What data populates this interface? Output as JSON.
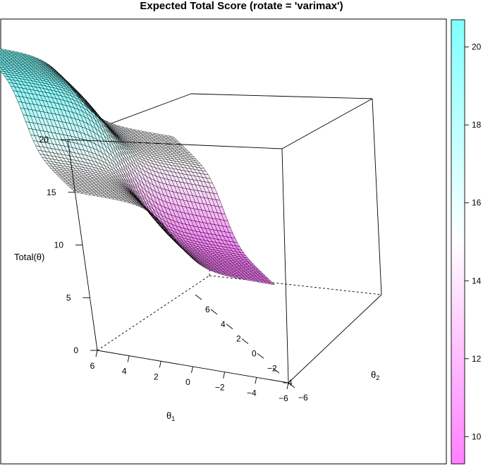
{
  "chart_data": {
    "type": "surface",
    "title": "Expected Total Score (rotate = 'varimax')",
    "xlabel": "θ1",
    "ylabel": "θ2",
    "zlabel": "Total(θ)",
    "xlim": [
      -6,
      6
    ],
    "ylim": [
      -6,
      6
    ],
    "zlim": [
      0,
      20
    ],
    "x_ticks": [
      "6",
      "4",
      "2",
      "0",
      "−2",
      "−4",
      "−6"
    ],
    "y_ticks": [
      "−6",
      "−4",
      "−2",
      "0",
      "2",
      "4",
      "6"
    ],
    "z_ticks": [
      "0",
      "5",
      "10",
      "15",
      "20"
    ],
    "grid_points": 50,
    "surface_levels": {
      "theta1_neg_theta2_neg": 9.3,
      "theta1_neg_theta2_pos": 15,
      "theta1_pos_theta2_neg": 15,
      "theta1_pos_theta2_pos": 20.7
    },
    "colorkey": {
      "range": [
        9.3,
        20.7
      ],
      "ticks": [
        "10",
        "12",
        "14",
        "16",
        "18",
        "20"
      ],
      "low_color": "#ff80ff",
      "mid_color": "#ffffff",
      "high_color": "#80ffff"
    }
  }
}
